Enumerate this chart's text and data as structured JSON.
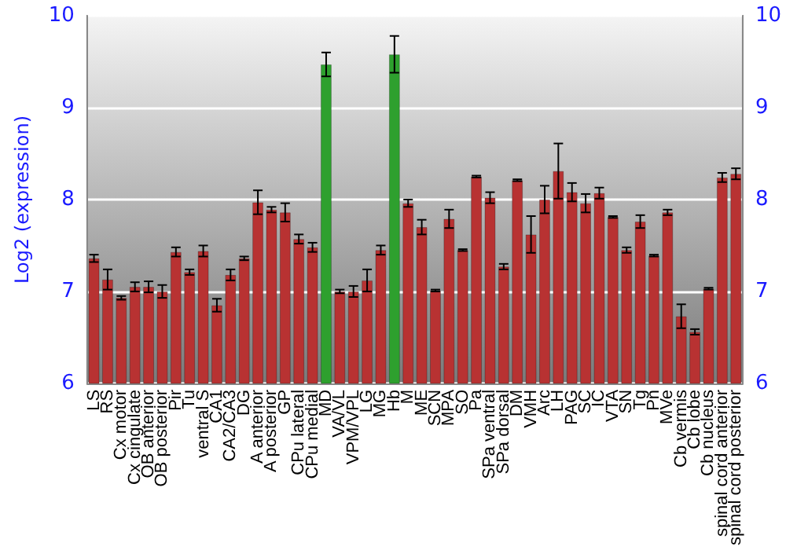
{
  "chart_data": {
    "type": "bar",
    "ylabel": "Log2 (expression)",
    "categories": [
      "LS",
      "RS",
      "Cx motor",
      "Cx cingulate",
      "OB anterior",
      "OB posterior",
      "Pir",
      "Tu",
      "ventral S",
      "CA1",
      "CA2/CA3",
      "DG",
      "A anterior",
      "A posterior",
      "GP",
      "CPu lateral",
      "CPu medial",
      "MD",
      "VA/VL",
      "VPM/VPL",
      "LG",
      "MG",
      "Hb",
      "M",
      "ME",
      "SCN",
      "MPA",
      "SO",
      "Pa",
      "SPa ventral",
      "SPa dorsal",
      "DM",
      "VMH",
      "Arc",
      "LH",
      "PAG",
      "SC",
      "IC",
      "VTA",
      "SN",
      "Tg",
      "Pn",
      "MVe",
      "Cb vermis",
      "Cb lobe",
      "Cb nucleus",
      "spinal cord anterior",
      "spinal cord posterior"
    ],
    "values": [
      7.36,
      7.13,
      6.93,
      7.05,
      7.05,
      7.0,
      7.43,
      7.21,
      7.44,
      6.85,
      7.18,
      7.36,
      7.97,
      7.89,
      7.86,
      7.57,
      7.48,
      9.47,
      7.0,
      7.0,
      7.12,
      7.45,
      9.58,
      7.96,
      7.7,
      7.01,
      7.79,
      7.45,
      8.25,
      8.02,
      7.27,
      8.21,
      7.62,
      8.0,
      8.31,
      8.08,
      7.96,
      8.07,
      7.81,
      7.45,
      7.76,
      7.39,
      7.86,
      6.73,
      6.56,
      7.03,
      8.24,
      8.28
    ],
    "errors": [
      0.04,
      0.11,
      0.02,
      0.05,
      0.06,
      0.07,
      0.05,
      0.03,
      0.06,
      0.07,
      0.06,
      0.02,
      0.13,
      0.03,
      0.1,
      0.05,
      0.05,
      0.13,
      0.02,
      0.06,
      0.12,
      0.05,
      0.2,
      0.04,
      0.08,
      0.01,
      0.1,
      0.01,
      0.01,
      0.06,
      0.03,
      0.01,
      0.2,
      0.15,
      0.3,
      0.1,
      0.1,
      0.06,
      0.01,
      0.03,
      0.07,
      0.01,
      0.03,
      0.13,
      0.03,
      0.01,
      0.05,
      0.06
    ],
    "colors": [
      "#b83232",
      "#b83232",
      "#b83232",
      "#b83232",
      "#b83232",
      "#b83232",
      "#b83232",
      "#b83232",
      "#b83232",
      "#b83232",
      "#b83232",
      "#b83232",
      "#b83232",
      "#b83232",
      "#b83232",
      "#b83232",
      "#b83232",
      "#2ea02e",
      "#b83232",
      "#b83232",
      "#b83232",
      "#b83232",
      "#2ea02e",
      "#b83232",
      "#b83232",
      "#b83232",
      "#b83232",
      "#b83232",
      "#b83232",
      "#b83232",
      "#b83232",
      "#b83232",
      "#b83232",
      "#b83232",
      "#b83232",
      "#b83232",
      "#b83232",
      "#b83232",
      "#b83232",
      "#b83232",
      "#b83232",
      "#b83232",
      "#b83232",
      "#b83232",
      "#b83232",
      "#b83232",
      "#b83232",
      "#b83232"
    ],
    "ylim": [
      6,
      10
    ],
    "yticks": [
      6,
      7,
      8,
      9,
      10
    ],
    "y2lim": [
      6,
      10
    ],
    "y2ticks": [
      6,
      7,
      8,
      9,
      10
    ],
    "grid": "y"
  }
}
